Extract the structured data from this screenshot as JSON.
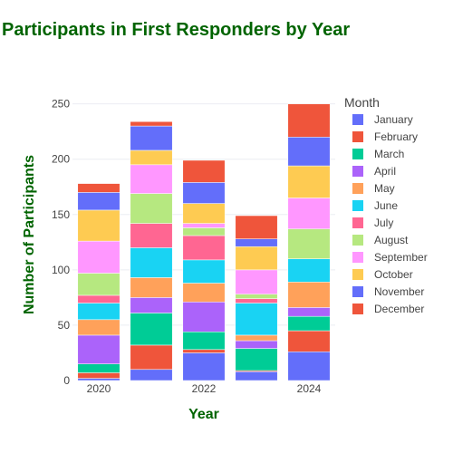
{
  "chart_data": {
    "type": "bar",
    "stacked": true,
    "title": "Participants in First Responders by Year",
    "xlabel": "Year",
    "ylabel": "Number of Participants",
    "x": [
      2020,
      2021,
      2022,
      2023,
      2024
    ],
    "x_tick_labels": [
      "2020",
      "2022",
      "2024"
    ],
    "ylim": [
      0,
      262
    ],
    "y_ticks": [
      0,
      50,
      100,
      150,
      200,
      250
    ],
    "grid": true,
    "legend_title": "Month",
    "legend_position": "right",
    "series": [
      {
        "name": "January",
        "color": "#636efa",
        "values": [
          2,
          10,
          25,
          8,
          26
        ]
      },
      {
        "name": "February",
        "color": "#ef553b",
        "values": [
          5,
          22,
          3,
          1,
          19
        ]
      },
      {
        "name": "March",
        "color": "#00cc96",
        "values": [
          8,
          29,
          16,
          20,
          13
        ]
      },
      {
        "name": "April",
        "color": "#ab63fa",
        "values": [
          26,
          14,
          27,
          7,
          8
        ]
      },
      {
        "name": "May",
        "color": "#ffa15a",
        "values": [
          14,
          18,
          17,
          5,
          23
        ]
      },
      {
        "name": "June",
        "color": "#19d3f3",
        "values": [
          15,
          27,
          21,
          29,
          21
        ]
      },
      {
        "name": "July",
        "color": "#ff6692",
        "values": [
          7,
          22,
          22,
          4,
          0
        ]
      },
      {
        "name": "August",
        "color": "#b6e880",
        "values": [
          20,
          27,
          7,
          4,
          27
        ]
      },
      {
        "name": "September",
        "color": "#ff97ff",
        "values": [
          29,
          26,
          4,
          22,
          28
        ]
      },
      {
        "name": "October",
        "color": "#fecb52",
        "values": [
          28,
          13,
          18,
          21,
          29
        ]
      },
      {
        "name": "November",
        "color": "#636efa",
        "values": [
          16,
          22,
          19,
          7,
          26
        ]
      },
      {
        "name": "December",
        "color": "#ef553b",
        "values": [
          8,
          4,
          20,
          21,
          30
        ]
      }
    ]
  },
  "colors": {
    "title": "#006400",
    "grid": "#ebedf2",
    "tick_text": "#444444"
  }
}
